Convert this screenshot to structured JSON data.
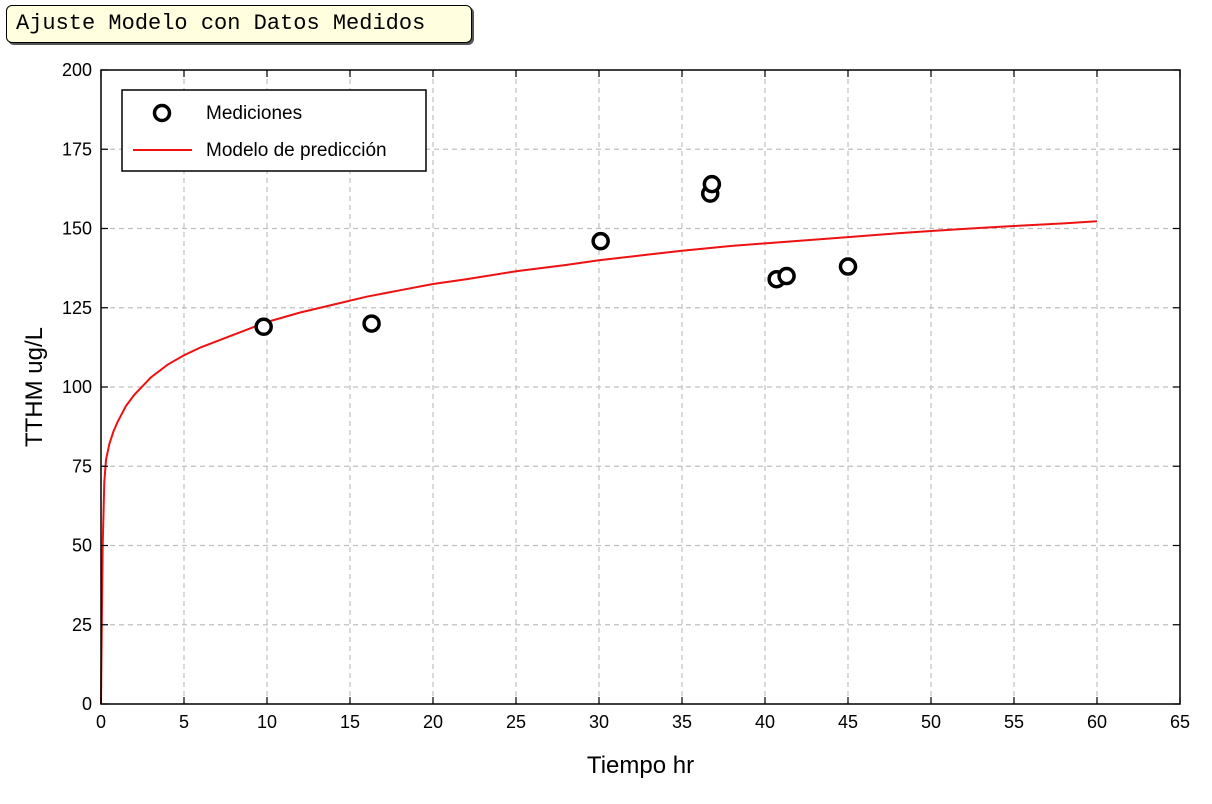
{
  "window_title": "Ajuste Modelo con Datos Medidos",
  "colors": {
    "measurement": "#000000",
    "model": "#ee1111",
    "grid": "#c0c0c0",
    "title_box_bg": "#ffffe0"
  },
  "chart_data": {
    "type": "scatter",
    "title": "",
    "xlabel": "Tiempo hr",
    "ylabel": "TTHM ug/L",
    "xlim": [
      0,
      65
    ],
    "ylim": [
      0,
      200
    ],
    "xticks": [
      0,
      5,
      10,
      15,
      20,
      25,
      30,
      35,
      40,
      45,
      50,
      55,
      60,
      65
    ],
    "yticks": [
      0,
      25,
      50,
      75,
      100,
      125,
      150,
      175,
      200
    ],
    "grid": true,
    "legend_position": "top-left",
    "series": [
      {
        "name": "Mediciones",
        "kind": "scatter",
        "marker": "open-circle",
        "color": "#000000",
        "points": [
          [
            9.8,
            119
          ],
          [
            16.3,
            120
          ],
          [
            30.1,
            146
          ],
          [
            36.7,
            161
          ],
          [
            36.8,
            164
          ],
          [
            40.7,
            134
          ],
          [
            41.3,
            135
          ],
          [
            45.0,
            138
          ]
        ]
      },
      {
        "name": "Modelo de predicción",
        "kind": "line",
        "color": "#ee1111",
        "points": [
          [
            0,
            0
          ],
          [
            0.05,
            25
          ],
          [
            0.1,
            50
          ],
          [
            0.2,
            70
          ],
          [
            0.3,
            77
          ],
          [
            0.5,
            82
          ],
          [
            0.75,
            86
          ],
          [
            1,
            89
          ],
          [
            1.5,
            94
          ],
          [
            2,
            97.5
          ],
          [
            3,
            103
          ],
          [
            4,
            107
          ],
          [
            5,
            110
          ],
          [
            6,
            112.5
          ],
          [
            8,
            116.5
          ],
          [
            10,
            120.5
          ],
          [
            12,
            123.5
          ],
          [
            14,
            126
          ],
          [
            16,
            128.5
          ],
          [
            18,
            130.5
          ],
          [
            20,
            132.5
          ],
          [
            22,
            134
          ],
          [
            25,
            136.5
          ],
          [
            28,
            138.5
          ],
          [
            30,
            140
          ],
          [
            33,
            141.8
          ],
          [
            35,
            143
          ],
          [
            38,
            144.5
          ],
          [
            40,
            145.3
          ],
          [
            43,
            146.5
          ],
          [
            45,
            147.3
          ],
          [
            48,
            148.5
          ],
          [
            50,
            149.2
          ],
          [
            53,
            150.2
          ],
          [
            55,
            150.8
          ],
          [
            58,
            151.6
          ],
          [
            60,
            152.3
          ]
        ]
      }
    ]
  }
}
